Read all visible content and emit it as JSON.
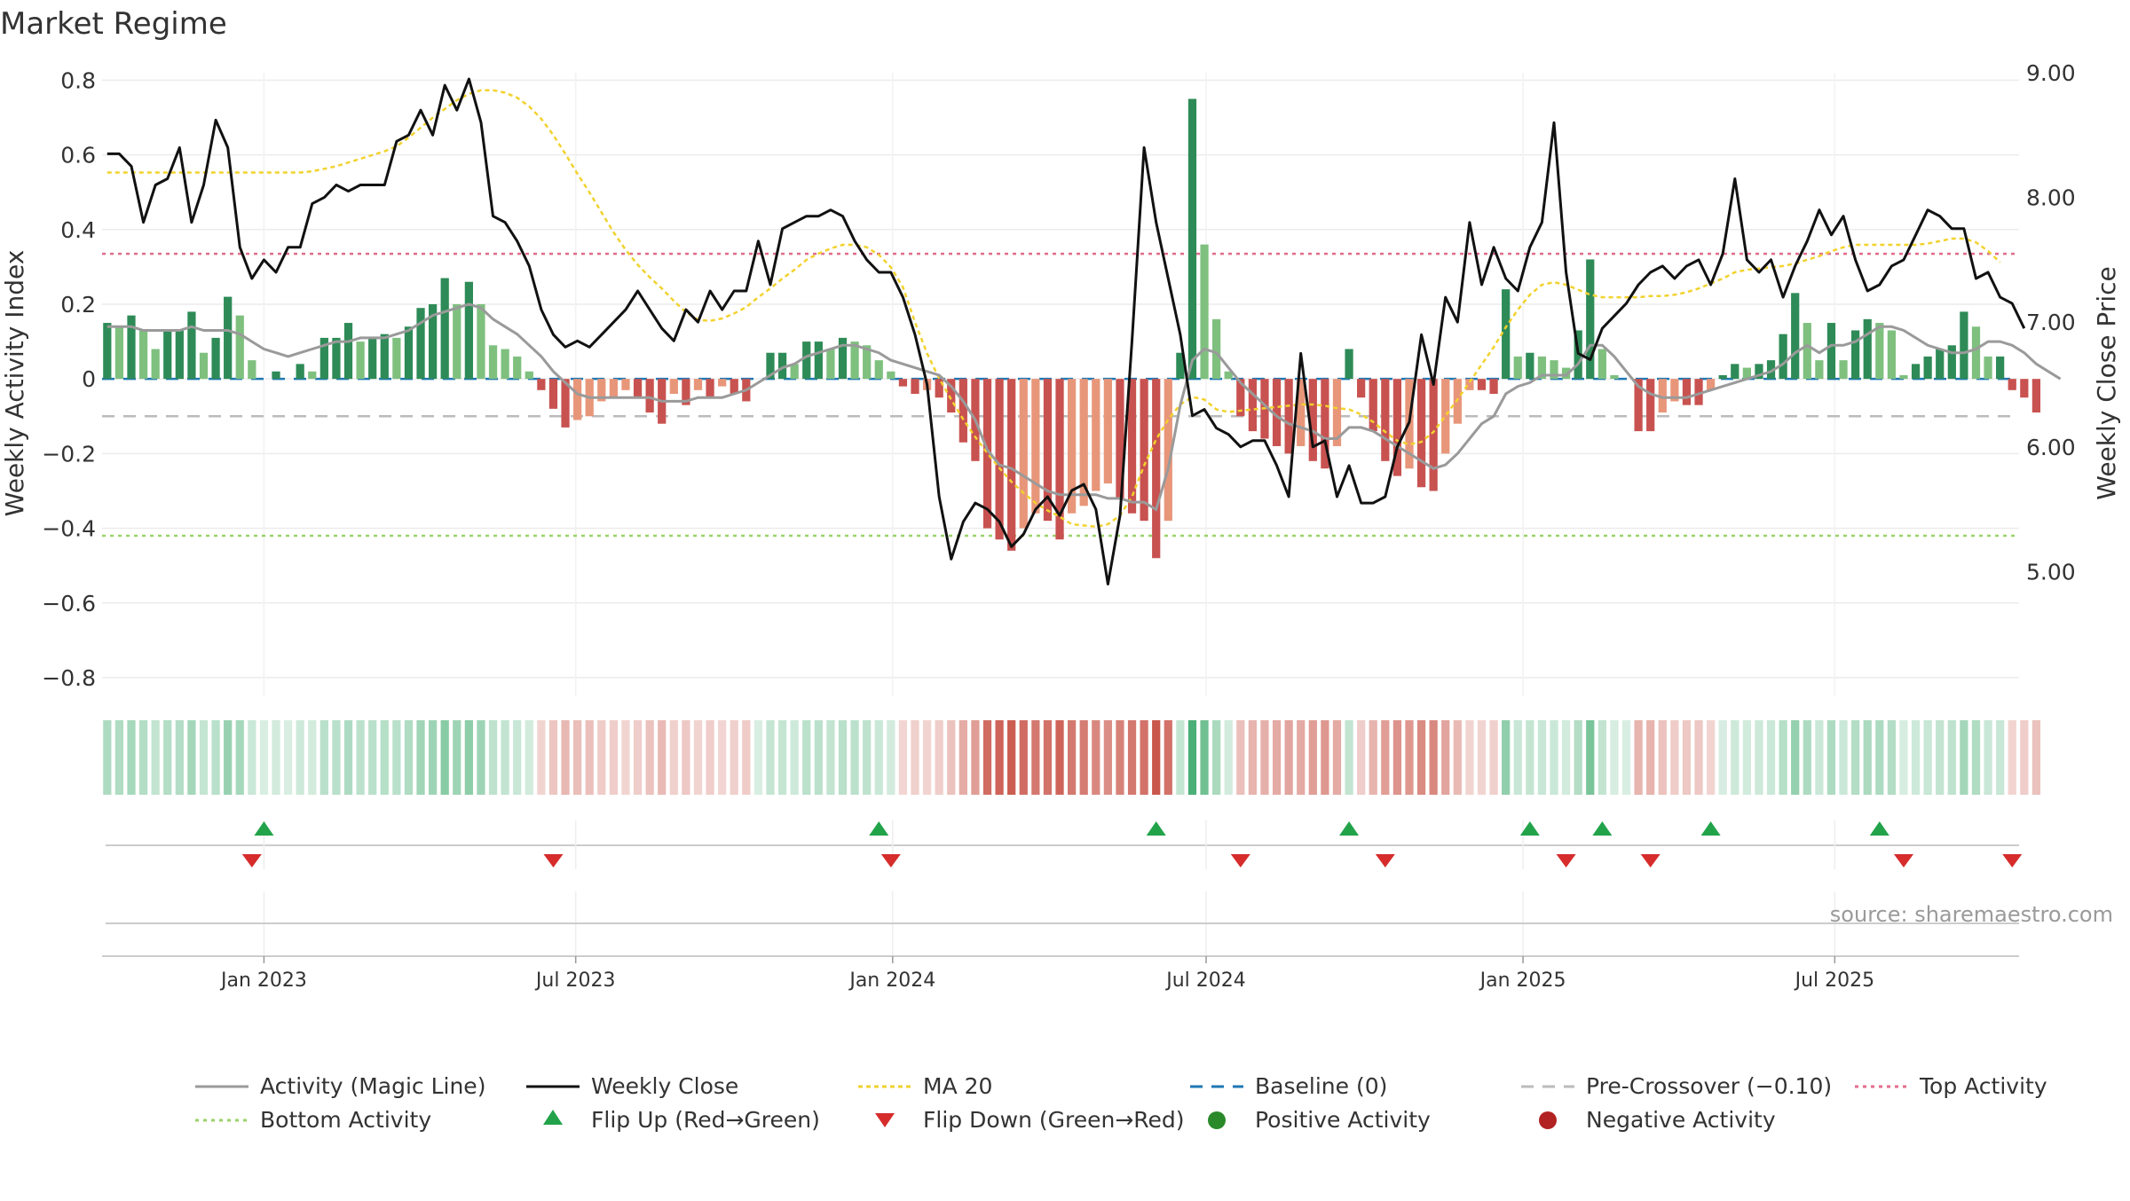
{
  "chart_data": {
    "type": "bar+line",
    "title": "Market Regime",
    "ylabel_left": "Weekly Activity Index",
    "ylabel_right": "Weekly Close Price",
    "ylim_left": [
      -0.85,
      0.82
    ],
    "ylim_right": [
      4.0,
      9.0
    ],
    "yticks_left": [
      0.8,
      0.6,
      0.4,
      0.2,
      0,
      -0.2,
      -0.4,
      -0.6,
      -0.8
    ],
    "yticks_left_labels": [
      "0.8",
      "0.6",
      "0.4",
      "0.2",
      "0",
      "−0.2",
      "−0.4",
      "−0.6",
      "−0.8"
    ],
    "yticks_right": [
      9.0,
      8.0,
      7.0,
      6.0,
      5.0
    ],
    "yticks_right_labels": [
      "9.00",
      "8.00",
      "7.00",
      "6.00",
      "5.00"
    ],
    "x_start": "2022-09-29",
    "x_end": "2025-10-16",
    "xticks": [
      {
        "date": "2023-01-01",
        "label": "Jan 2023"
      },
      {
        "date": "2023-07-01",
        "label": "Jul 2023"
      },
      {
        "date": "2024-01-01",
        "label": "Jan 2024"
      },
      {
        "date": "2024-07-01",
        "label": "Jul 2024"
      },
      {
        "date": "2025-01-01",
        "label": "Jan 2025"
      },
      {
        "date": "2025-07-01",
        "label": "Jul 2025"
      }
    ],
    "weeks_start": "2022-10-02",
    "weeks_count": 159,
    "activity": [
      0.15,
      0.14,
      0.17,
      0.13,
      0.08,
      0.13,
      0.13,
      0.18,
      0.07,
      0.11,
      0.22,
      0.17,
      0.05,
      0.0,
      0.02,
      0.0,
      0.04,
      0.02,
      0.11,
      0.11,
      0.15,
      0.1,
      0.11,
      0.12,
      0.11,
      0.14,
      0.19,
      0.2,
      0.27,
      0.2,
      0.26,
      0.2,
      0.09,
      0.08,
      0.06,
      0.02,
      -0.03,
      -0.08,
      -0.13,
      -0.11,
      -0.1,
      -0.06,
      -0.05,
      -0.03,
      -0.05,
      -0.09,
      -0.12,
      -0.04,
      -0.07,
      -0.03,
      -0.05,
      -0.02,
      -0.04,
      -0.06,
      0.0,
      0.07,
      0.07,
      0.04,
      0.1,
      0.1,
      0.08,
      0.11,
      0.1,
      0.09,
      0.05,
      0.02,
      -0.02,
      -0.04,
      -0.03,
      -0.05,
      -0.09,
      -0.17,
      -0.22,
      -0.4,
      -0.43,
      -0.46,
      -0.4,
      -0.36,
      -0.38,
      -0.43,
      -0.36,
      -0.34,
      -0.3,
      -0.28,
      -0.32,
      -0.36,
      -0.38,
      -0.48,
      -0.38,
      0.07,
      0.75,
      0.36,
      0.16,
      0.02,
      -0.1,
      -0.14,
      -0.16,
      -0.18,
      -0.2,
      -0.18,
      -0.22,
      -0.24,
      -0.18,
      0.08,
      -0.05,
      -0.14,
      -0.22,
      -0.26,
      -0.24,
      -0.29,
      -0.3,
      -0.2,
      -0.12,
      -0.03,
      -0.03,
      -0.04,
      0.24,
      0.06,
      0.07,
      0.06,
      0.05,
      0.03,
      0.13,
      0.32,
      0.08,
      0.01,
      0.0,
      -0.14,
      -0.14,
      -0.09,
      -0.06,
      -0.07,
      -0.07,
      -0.03,
      0.01,
      0.04,
      0.03,
      0.04,
      0.05,
      0.12,
      0.23,
      0.15,
      0.05,
      0.15,
      0.05,
      0.13,
      0.16,
      0.15,
      0.13,
      0.01,
      0.04,
      0.06,
      0.08,
      0.09,
      0.18,
      0.14,
      0.06,
      0.06,
      -0.03,
      -0.05,
      -0.09
    ],
    "magic_line": [
      0.14,
      0.14,
      0.14,
      0.13,
      0.13,
      0.13,
      0.13,
      0.14,
      0.13,
      0.13,
      0.13,
      0.12,
      0.1,
      0.08,
      0.07,
      0.06,
      0.07,
      0.08,
      0.09,
      0.1,
      0.1,
      0.11,
      0.11,
      0.11,
      0.12,
      0.13,
      0.15,
      0.17,
      0.18,
      0.19,
      0.2,
      0.19,
      0.16,
      0.14,
      0.12,
      0.09,
      0.06,
      0.02,
      -0.01,
      -0.04,
      -0.05,
      -0.05,
      -0.05,
      -0.05,
      -0.05,
      -0.05,
      -0.06,
      -0.06,
      -0.06,
      -0.05,
      -0.05,
      -0.05,
      -0.04,
      -0.03,
      -0.01,
      0.01,
      0.03,
      0.04,
      0.06,
      0.07,
      0.08,
      0.09,
      0.09,
      0.08,
      0.07,
      0.05,
      0.04,
      0.03,
      0.02,
      0.01,
      -0.02,
      -0.06,
      -0.11,
      -0.19,
      -0.23,
      -0.24,
      -0.26,
      -0.28,
      -0.3,
      -0.31,
      -0.31,
      -0.31,
      -0.31,
      -0.32,
      -0.32,
      -0.33,
      -0.33,
      -0.35,
      -0.24,
      -0.07,
      0.05,
      0.08,
      0.07,
      0.03,
      -0.01,
      -0.04,
      -0.07,
      -0.1,
      -0.12,
      -0.13,
      -0.14,
      -0.16,
      -0.16,
      -0.13,
      -0.13,
      -0.14,
      -0.16,
      -0.18,
      -0.2,
      -0.22,
      -0.24,
      -0.23,
      -0.2,
      -0.16,
      -0.12,
      -0.1,
      -0.04,
      -0.02,
      -0.01,
      0.01,
      0.01,
      0.01,
      0.04,
      0.09,
      0.09,
      0.06,
      0.02,
      -0.02,
      -0.04,
      -0.05,
      -0.05,
      -0.05,
      -0.04,
      -0.03,
      -0.02,
      -0.01,
      0.0,
      0.01,
      0.02,
      0.04,
      0.07,
      0.09,
      0.07,
      0.09,
      0.09,
      0.1,
      0.12,
      0.14,
      0.14,
      0.13,
      0.11,
      0.09,
      0.08,
      0.07,
      0.07,
      0.08,
      0.1,
      0.1,
      0.09,
      0.07,
      0.04,
      0.02,
      0.0
    ],
    "weekly_close": [
      8.35,
      8.35,
      8.25,
      7.8,
      8.1,
      8.15,
      8.4,
      7.8,
      8.1,
      8.62,
      8.4,
      7.6,
      7.35,
      7.5,
      7.4,
      7.6,
      7.6,
      7.95,
      8.0,
      8.1,
      8.05,
      8.1,
      8.1,
      8.1,
      8.45,
      8.5,
      8.7,
      8.5,
      8.9,
      8.7,
      8.95,
      8.6,
      7.85,
      7.8,
      7.65,
      7.45,
      7.1,
      6.9,
      6.8,
      6.85,
      6.8,
      6.9,
      7.0,
      7.1,
      7.25,
      7.1,
      6.95,
      6.85,
      7.1,
      7.0,
      7.25,
      7.1,
      7.25,
      7.25,
      7.65,
      7.3,
      7.75,
      7.8,
      7.85,
      7.85,
      7.9,
      7.85,
      7.65,
      7.5,
      7.4,
      7.4,
      7.2,
      6.9,
      6.5,
      5.6,
      5.1,
      5.4,
      5.55,
      5.5,
      5.4,
      5.2,
      5.3,
      5.5,
      5.6,
      5.45,
      5.65,
      5.7,
      5.5,
      4.9,
      5.45,
      6.85,
      8.4,
      7.8,
      7.35,
      6.9,
      6.25,
      6.3,
      6.15,
      6.1,
      6.0,
      6.05,
      6.05,
      5.85,
      5.6,
      6.75,
      6.0,
      6.05,
      5.6,
      5.85,
      5.55,
      5.55,
      5.6,
      6.0,
      6.2,
      6.9,
      6.5,
      7.2,
      7.0,
      7.8,
      7.3,
      7.6,
      7.35,
      7.25,
      7.6,
      7.8,
      8.6,
      7.4,
      6.75,
      6.7,
      6.95,
      7.05,
      7.15,
      7.3,
      7.4,
      7.45,
      7.35,
      7.45,
      7.5,
      7.3,
      7.55,
      8.15,
      7.5,
      7.4,
      7.5,
      7.2,
      7.45,
      7.65,
      7.9,
      7.7,
      7.85,
      7.5,
      7.25,
      7.3,
      7.45,
      7.5,
      7.7,
      7.9,
      7.85,
      7.75,
      7.75,
      7.35,
      7.4,
      7.2,
      7.15,
      6.95
    ],
    "ma20": [
      8.2,
      8.2,
      8.2,
      8.2,
      8.2,
      8.2,
      8.2,
      8.2,
      8.2,
      8.2,
      8.2,
      8.2,
      8.2,
      8.2,
      8.2,
      8.2,
      8.2,
      8.21,
      8.23,
      8.25,
      8.28,
      8.31,
      8.34,
      8.37,
      8.41,
      8.48,
      8.56,
      8.64,
      8.71,
      8.78,
      8.83,
      8.86,
      8.86,
      8.84,
      8.8,
      8.73,
      8.63,
      8.5,
      8.35,
      8.19,
      8.04,
      7.88,
      7.72,
      7.58,
      7.46,
      7.36,
      7.27,
      7.17,
      7.08,
      7.02,
      7.01,
      7.03,
      7.07,
      7.12,
      7.2,
      7.27,
      7.35,
      7.42,
      7.5,
      7.55,
      7.59,
      7.62,
      7.62,
      7.6,
      7.54,
      7.44,
      7.28,
      7.0,
      6.75,
      6.55,
      6.38,
      6.22,
      6.08,
      5.95,
      5.83,
      5.72,
      5.63,
      5.55,
      5.49,
      5.44,
      5.38,
      5.37,
      5.36,
      5.38,
      5.45,
      5.6,
      5.85,
      6.06,
      6.22,
      6.34,
      6.4,
      6.38,
      6.3,
      6.28,
      6.29,
      6.3,
      6.31,
      6.32,
      6.33,
      6.34,
      6.34,
      6.33,
      6.31,
      6.3,
      6.26,
      6.2,
      6.12,
      6.05,
      6.02,
      6.04,
      6.12,
      6.25,
      6.38,
      6.52,
      6.66,
      6.8,
      6.96,
      7.1,
      7.22,
      7.3,
      7.32,
      7.3,
      7.26,
      7.22,
      7.2,
      7.2,
      7.2,
      7.2,
      7.21,
      7.21,
      7.22,
      7.24,
      7.27,
      7.31,
      7.35,
      7.4,
      7.42,
      7.43,
      7.44,
      7.45,
      7.47,
      7.5,
      7.53,
      7.57,
      7.6,
      7.62,
      7.62,
      7.62,
      7.62,
      7.62,
      7.62,
      7.63,
      7.65,
      7.67,
      7.67,
      7.64,
      7.57,
      7.48
    ],
    "baseline": 0,
    "pre_crossover": -0.1,
    "top_activity": 0.335,
    "bottom_activity": -0.42,
    "flip_up_weeks": [
      13,
      64,
      87,
      103,
      118,
      124,
      133,
      147
    ],
    "flip_down_weeks": [
      12,
      37,
      65,
      94,
      106,
      121,
      128,
      149,
      158
    ],
    "colors": {
      "bar_green_strong": "#2e8b57",
      "bar_green_light": "#7fc07f",
      "bar_red_strong": "#c85250",
      "bar_red_light": "#e8967a",
      "close_line": "#111111",
      "magic_line": "#9a9a9a",
      "ma20": "#f2d22e",
      "baseline": "#1f77b4",
      "pre_crossover": "#bbbbbb",
      "top_activity": "#e06c8c",
      "bottom_activity": "#9ad36a",
      "flip_up": "#22a34a",
      "flip_down": "#d62c2c",
      "positive_dot": "#2a8a2a",
      "negative_dot": "#b22222"
    },
    "legend": {
      "magic": "Activity (Magic Line)",
      "close": "Weekly Close",
      "ma20": "MA 20",
      "baseline": "Baseline (0)",
      "pre": "Pre-Crossover (−0.10)",
      "top": "Top Activity",
      "bottom": "Bottom Activity",
      "flip_up": "Flip Up (Red→Green)",
      "flip_down": "Flip Down (Green→Red)",
      "positive": "Positive Activity",
      "negative": "Negative Activity"
    },
    "source_note": "source: sharemaestro.com"
  }
}
